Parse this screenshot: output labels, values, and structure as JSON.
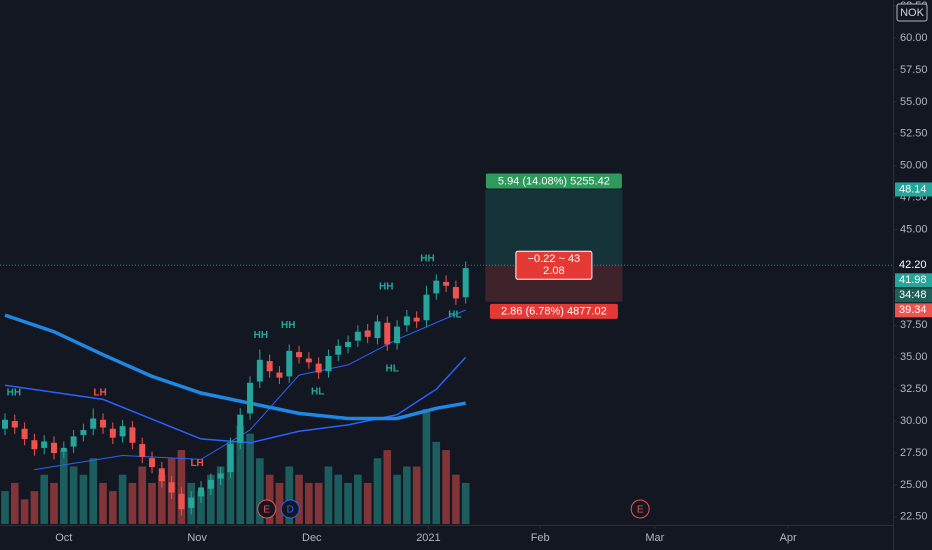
{
  "chart_data": {
    "type": "candlestick",
    "symbol": "NOK",
    "xlim": [
      -0.51,
      90.8
    ],
    "ylim": [
      21.86,
      62.98
    ],
    "xticks": [
      {
        "value": 6,
        "label": "Oct"
      },
      {
        "value": 19.6,
        "label": "Nov"
      },
      {
        "value": 31.3,
        "label": "Dec"
      },
      {
        "value": 43.2,
        "label": "2021"
      },
      {
        "value": 54.6,
        "label": "Feb"
      },
      {
        "value": 66.3,
        "label": "Mar"
      },
      {
        "value": 79.9,
        "label": "Apr"
      }
    ],
    "yticks": [
      {
        "value": 62.5,
        "label": "62.50"
      },
      {
        "value": 60,
        "label": "60.00"
      },
      {
        "value": 57.5,
        "label": "57.50"
      },
      {
        "value": 55,
        "label": "55.00"
      },
      {
        "value": 52.5,
        "label": "52.50"
      },
      {
        "value": 50,
        "label": "50.00"
      },
      {
        "value": 47.5,
        "label": "47.50"
      },
      {
        "value": 45,
        "label": "45.00"
      },
      {
        "value": 37.5,
        "label": "37.50"
      },
      {
        "value": 35,
        "label": "35.00"
      },
      {
        "value": 32.5,
        "label": "32.50"
      },
      {
        "value": 30,
        "label": "30.00"
      },
      {
        "value": 27.5,
        "label": "27.50"
      },
      {
        "value": 25,
        "label": "25.00"
      },
      {
        "value": 22.5,
        "label": "22.50"
      }
    ],
    "up_color": "#26a69a",
    "down_color": "#ef5350",
    "open": [
      29.4,
      30.0,
      29.4,
      28.5,
      27.9,
      28.3,
      27.6,
      28.0,
      28.9,
      29.4,
      30.1,
      29.4,
      28.8,
      29.5,
      28.2,
      27.1,
      26.3,
      25.2,
      24.3,
      23.2,
      24.1,
      24.7,
      25.5,
      26.0,
      28.3,
      30.6,
      33.1,
      34.7,
      33.8,
      33.5,
      35.4,
      34.9,
      34.5,
      33.9,
      35.2,
      35.8,
      36.3,
      37.1,
      36.5,
      37.7,
      36.1,
      37.5,
      38.1,
      37.9,
      40.0,
      40.9,
      40.5,
      39.7
    ],
    "high": [
      30.6,
      30.5,
      29.9,
      29.0,
      28.9,
      28.8,
      28.4,
      29.3,
      29.8,
      31.0,
      30.6,
      29.9,
      30.1,
      30.0,
      28.7,
      27.6,
      26.8,
      25.7,
      24.8,
      24.5,
      25.3,
      25.9,
      26.4,
      28.7,
      31.0,
      33.5,
      35.6,
      35.2,
      34.3,
      36.0,
      35.9,
      35.4,
      35.0,
      35.6,
      36.4,
      36.7,
      37.5,
      37.6,
      38.3,
      38.2,
      37.9,
      38.7,
      38.6,
      40.6,
      41.5,
      41.4,
      41.0,
      42.5
    ],
    "low": [
      28.9,
      29.0,
      28.1,
      27.3,
      27.4,
      27.0,
      27.1,
      27.5,
      28.4,
      28.9,
      29.0,
      28.2,
      28.3,
      27.8,
      26.7,
      25.9,
      24.8,
      23.9,
      22.6,
      22.7,
      23.6,
      24.2,
      25.0,
      25.5,
      27.8,
      30.1,
      32.6,
      33.4,
      32.9,
      33.0,
      34.5,
      34.1,
      33.3,
      33.4,
      34.7,
      35.3,
      35.8,
      36.1,
      36.0,
      35.5,
      35.6,
      37.0,
      37.3,
      37.4,
      39.5,
      40.1,
      39.1,
      39.2
    ],
    "close": [
      30.1,
      29.5,
      28.6,
      27.8,
      28.4,
      27.5,
      27.9,
      28.8,
      29.3,
      30.2,
      29.5,
      28.7,
      29.6,
      28.3,
      27.2,
      26.4,
      25.3,
      24.4,
      23.1,
      24.0,
      24.8,
      25.4,
      25.9,
      28.2,
      30.5,
      33.0,
      34.8,
      33.9,
      33.4,
      35.5,
      35.0,
      34.6,
      33.8,
      35.1,
      35.9,
      36.2,
      37.0,
      36.6,
      37.8,
      36.0,
      37.4,
      38.2,
      37.8,
      39.9,
      41.0,
      40.6,
      39.6,
      41.98
    ],
    "volume": [
      4,
      5,
      3,
      4,
      6,
      5,
      9,
      7,
      6,
      8,
      5,
      4,
      6,
      5,
      7,
      5,
      6,
      8,
      9,
      5,
      4,
      6,
      7,
      10,
      12,
      11,
      8,
      6,
      5,
      7,
      6,
      5,
      5,
      7,
      6,
      5,
      6,
      5,
      8,
      9,
      6,
      7,
      7,
      14,
      10,
      9,
      6,
      5
    ],
    "moving_averages": [
      {
        "color": "#2962ff",
        "width": 1,
        "x": [
          3,
          12,
          20,
          25,
          30,
          35,
          40,
          47
        ],
        "values": [
          26.2,
          27.3,
          27.0,
          29.3,
          33.6,
          34.4,
          36.4,
          38.7
        ]
      },
      {
        "color": "#2962ff",
        "width": 1.5,
        "x": [
          0,
          10,
          20,
          25,
          30,
          35,
          40,
          44,
          47
        ],
        "values": [
          32.8,
          31.7,
          28.6,
          28.3,
          29.2,
          29.7,
          30.5,
          32.5,
          35.0
        ]
      },
      {
        "color": "#1e88e5",
        "width": 3.5,
        "x": [
          0,
          5,
          10,
          15,
          20,
          25,
          30,
          35,
          40,
          44,
          47
        ],
        "values": [
          38.3,
          37.0,
          35.2,
          33.5,
          32.2,
          31.4,
          30.6,
          30.2,
          30.2,
          31.0,
          31.4
        ]
      }
    ],
    "pivots": [
      {
        "label": "HH",
        "index": 0.9,
        "price": 32.2,
        "color": "#26a69a"
      },
      {
        "label": "LH",
        "index": 9.7,
        "price": 32.2,
        "color": "#ef5350"
      },
      {
        "label": "LH",
        "index": 19.6,
        "price": 26.7,
        "color": "#ef5350"
      },
      {
        "label": "HH",
        "index": 26.1,
        "price": 36.7,
        "color": "#26a69a"
      },
      {
        "label": "HH",
        "index": 28.9,
        "price": 37.5,
        "color": "#26a69a"
      },
      {
        "label": "HL",
        "index": 31.9,
        "price": 32.3,
        "color": "#26a69a"
      },
      {
        "label": "HH",
        "index": 38.9,
        "price": 40.5,
        "color": "#26a69a"
      },
      {
        "label": "HL",
        "index": 39.5,
        "price": 34.1,
        "color": "#26a69a"
      },
      {
        "label": "HH",
        "index": 43.1,
        "price": 42.7,
        "color": "#26a69a"
      },
      {
        "label": "HL",
        "index": 45.9,
        "price": 38.3,
        "color": "#26a69a"
      }
    ],
    "events": [
      {
        "label": "E",
        "index": 26.7,
        "color": "#ef5350"
      },
      {
        "label": "D",
        "index": 29.1,
        "color": "#2962ff"
      },
      {
        "label": "E",
        "index": 64.8,
        "color": "#ef5350"
      }
    ],
    "position": {
      "start": 49,
      "end": 63,
      "entry": 42.2,
      "target": 48.14,
      "stop": 39.34,
      "target_label": "5.94 (14.08%) 5255.42",
      "center_label": [
        "−0.22 ~ 43",
        "2.08"
      ],
      "stop_label": "2.86 (6.78%) 4877.02"
    },
    "price_tags": [
      {
        "value": 48.14,
        "label": "48.14",
        "color": "#26a69a"
      },
      {
        "value": 42.2,
        "label": "42.20",
        "color": "#131722"
      },
      {
        "value": 41.98,
        "label": "41.98",
        "color": "#26a69a"
      },
      {
        "value": 39.34,
        "label": "39.34",
        "color": "#ef5350"
      }
    ],
    "countdown": "34:48"
  }
}
